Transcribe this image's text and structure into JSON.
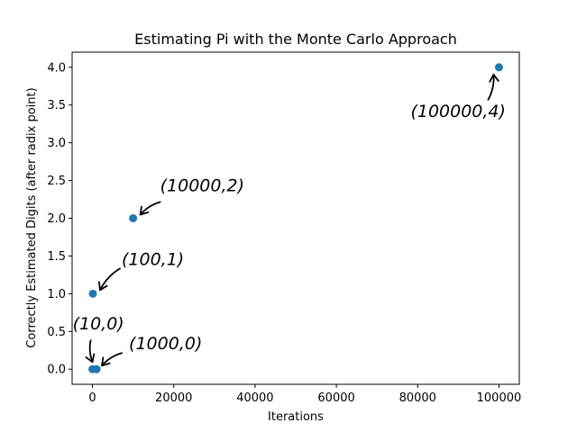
{
  "chart_data": {
    "type": "scatter",
    "title": "Estimating Pi with the Monte Carlo Approach",
    "xlabel": "Iterations",
    "ylabel": "Correctly Estimated Digits (after radix point)",
    "xlim": [
      -5000,
      105000
    ],
    "ylim": [
      -0.2,
      4.2
    ],
    "xticks": [
      0,
      20000,
      40000,
      60000,
      80000,
      100000
    ],
    "yticks": [
      0.0,
      0.5,
      1.0,
      1.5,
      2.0,
      2.5,
      3.0,
      3.5,
      4.0
    ],
    "xtick_labels": [
      "0",
      "20000",
      "40000",
      "60000",
      "80000",
      "100000"
    ],
    "ytick_labels": [
      "0.0",
      "0.5",
      "1.0",
      "1.5",
      "2.0",
      "2.5",
      "3.0",
      "3.5",
      "4.0"
    ],
    "grid": false,
    "marker_color": "#1f77b4",
    "points": [
      {
        "x": 10,
        "y": 0
      },
      {
        "x": 100,
        "y": 1
      },
      {
        "x": 1000,
        "y": 0
      },
      {
        "x": 10000,
        "y": 2
      },
      {
        "x": 100000,
        "y": 4
      }
    ],
    "annotations": [
      {
        "text": "(10,0)",
        "x": 10,
        "y": 0
      },
      {
        "text": "(1000,0)",
        "x": 1000,
        "y": 0
      },
      {
        "text": "(100,1)",
        "x": 100,
        "y": 1
      },
      {
        "text": "(10000,2)",
        "x": 10000,
        "y": 2
      },
      {
        "text": "(100000,4)",
        "x": 100000,
        "y": 4
      }
    ]
  }
}
